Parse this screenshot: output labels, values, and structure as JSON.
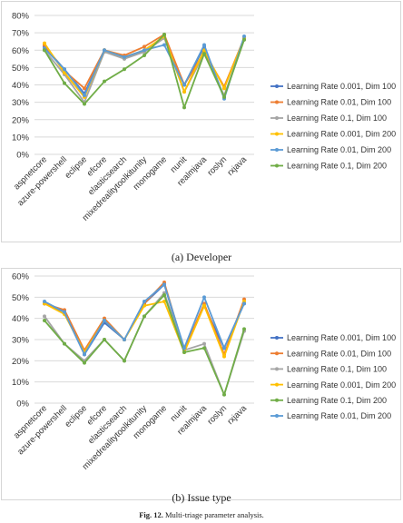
{
  "chart_data": [
    {
      "type": "line",
      "subcaption": "(a) Developer",
      "categories": [
        "aspnetcore",
        "azure-powershell",
        "eclipse",
        "efcore",
        "elasticsearch",
        "mixedrealitytoolkitunity",
        "monogame",
        "nunit",
        "realmjava",
        "roslyn",
        "rxjava"
      ],
      "ylim": [
        0,
        80
      ],
      "yticks": [
        "0%",
        "10%",
        "20%",
        "30%",
        "40%",
        "50%",
        "60%",
        "70%",
        "80%"
      ],
      "grid": true,
      "legend_position": "right",
      "series": [
        {
          "name": "Learning Rate 0.001, Dim 100",
          "color": "#4472c4",
          "values": [
            62,
            49,
            35,
            60,
            56,
            59,
            68,
            40,
            62,
            33,
            67
          ]
        },
        {
          "name": "Learning Rate 0.01, Dim 100",
          "color": "#ed7d31",
          "values": [
            63,
            48,
            38,
            60,
            57,
            62,
            69,
            40,
            59,
            39,
            67
          ]
        },
        {
          "name": "Learning Rate 0.1, Dim 100",
          "color": "#a5a5a5",
          "values": [
            60,
            46,
            30,
            59,
            55,
            59,
            67,
            36,
            58,
            34,
            66
          ]
        },
        {
          "name": "Learning Rate 0.001, Dim 200",
          "color": "#ffc000",
          "values": [
            64,
            47,
            33,
            60,
            56,
            60,
            68,
            36,
            60,
            38,
            67
          ]
        },
        {
          "name": "Learning Rate 0.01, Dim 200",
          "color": "#5b9bd5",
          "values": [
            61,
            49,
            34,
            60,
            56,
            60,
            63,
            40,
            63,
            32,
            68
          ]
        },
        {
          "name": "Learning Rate 0.1, Dim 200",
          "color": "#70ad47",
          "values": [
            60,
            41,
            29,
            42,
            49,
            57,
            69,
            27,
            58,
            33,
            66
          ]
        }
      ]
    },
    {
      "type": "line",
      "subcaption": "(b) Issue type",
      "categories": [
        "aspnetcore",
        "azure-powershell",
        "eclipse",
        "efcore",
        "elasticsearch",
        "mixedrealitytoolkitunity",
        "monogame",
        "nunit",
        "realmjava",
        "roslyn",
        "rxjava"
      ],
      "ylim": [
        0,
        60
      ],
      "yticks": [
        "0%",
        "10%",
        "20%",
        "30%",
        "40%",
        "50%",
        "60%"
      ],
      "grid": true,
      "legend_position": "right",
      "series": [
        {
          "name": "Learning Rate 0.001, Dim 100",
          "color": "#4472c4",
          "values": [
            47,
            43,
            23,
            38,
            30,
            47,
            56,
            25,
            46,
            26,
            47
          ]
        },
        {
          "name": "Learning Rate 0.01, Dim 100",
          "color": "#ed7d31",
          "values": [
            47,
            44,
            25,
            40,
            30,
            47,
            57,
            25,
            47,
            23,
            49
          ]
        },
        {
          "name": "Learning Rate 0.1, Dim 100",
          "color": "#a5a5a5",
          "values": [
            41,
            28,
            20,
            30,
            20,
            41,
            52,
            25,
            28,
            4,
            34
          ]
        },
        {
          "name": "Learning Rate 0.001, Dim 200",
          "color": "#ffc000",
          "values": [
            47,
            42,
            24,
            39,
            30,
            46,
            48,
            24,
            46,
            22,
            48
          ]
        },
        {
          "name": "Learning Rate 0.1, Dim 200",
          "color": "#70ad47",
          "values": [
            39,
            28,
            19,
            30,
            20,
            41,
            51,
            24,
            26,
            4,
            35
          ]
        },
        {
          "name": "Learning Rate 0.01, Dim 200",
          "color": "#5b9bd5",
          "values": [
            48,
            43,
            23,
            39,
            30,
            48,
            56,
            26,
            50,
            26,
            47
          ]
        }
      ]
    }
  ],
  "figure_caption": {
    "label": "Fig. 12.",
    "text": "Multi-triage parameter analysis."
  }
}
